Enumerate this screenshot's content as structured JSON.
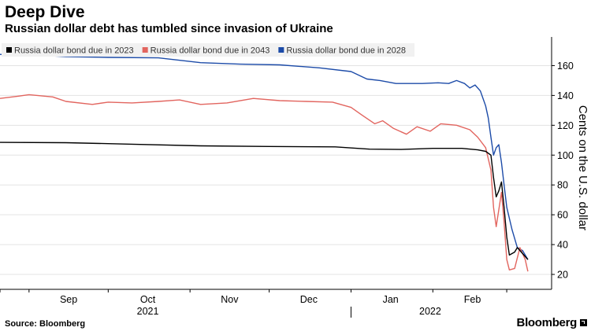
{
  "header": {
    "title": "Deep Dive",
    "subtitle": "Russian dollar debt has tumbled since invasion of Ukraine"
  },
  "footer": {
    "source": "Source: Bloomberg",
    "brand": "Bloomberg"
  },
  "chart_data": {
    "type": "line",
    "title": "Deep Dive",
    "subtitle": "Russian dollar debt has tumbled since invasion of Ukraine",
    "ylabel": "Cents on the U.S. dollar",
    "ylim": [
      10,
      175
    ],
    "yticks": [
      20,
      40,
      60,
      80,
      100,
      120,
      140,
      160
    ],
    "x_range": [
      "2021-08-21",
      "2022-03-18"
    ],
    "x_month_ticks": [
      {
        "label": "Sep",
        "date": "2021-09-01"
      },
      {
        "label": "Oct",
        "date": "2021-10-01"
      },
      {
        "label": "Nov",
        "date": "2021-11-01"
      },
      {
        "label": "Dec",
        "date": "2021-12-01"
      },
      {
        "label": "Jan",
        "date": "2022-01-01"
      },
      {
        "label": "Feb",
        "date": "2022-02-01"
      }
    ],
    "x_year_labels": [
      {
        "label": "2021",
        "date": "2021-10-16"
      },
      {
        "label": "2022",
        "date": "2022-01-31"
      }
    ],
    "x_tick_dates": [
      "2021-08-21",
      "2021-09-01",
      "2021-10-01",
      "2021-11-01",
      "2021-12-01",
      "2022-01-01",
      "2022-02-01",
      "2022-03-01"
    ],
    "grid": true,
    "legend_position": "top-left",
    "series": [
      {
        "name": "Russia dollar bond due in 2023",
        "color": "#000000",
        "points": [
          [
            "2021-08-21",
            108.5
          ],
          [
            "2021-09-15",
            108.3
          ],
          [
            "2021-10-10",
            107.3
          ],
          [
            "2021-11-05",
            106.2
          ],
          [
            "2021-12-01",
            105.8
          ],
          [
            "2021-12-26",
            105.5
          ],
          [
            "2022-01-08",
            104.0
          ],
          [
            "2022-01-20",
            103.8
          ],
          [
            "2022-02-01",
            104.5
          ],
          [
            "2022-02-12",
            104.5
          ],
          [
            "2022-02-18",
            103.5
          ],
          [
            "2022-02-21",
            102.5
          ],
          [
            "2022-02-23",
            100.0
          ],
          [
            "2022-02-24",
            85.0
          ],
          [
            "2022-02-25",
            72.0
          ],
          [
            "2022-02-26",
            76.0
          ],
          [
            "2022-02-27",
            82.0
          ],
          [
            "2022-02-28",
            65.0
          ],
          [
            "2022-03-01",
            45.0
          ],
          [
            "2022-03-02",
            33.0
          ],
          [
            "2022-03-04",
            35.0
          ],
          [
            "2022-03-05",
            38.0
          ],
          [
            "2022-03-07",
            34.0
          ],
          [
            "2022-03-09",
            30.0
          ]
        ]
      },
      {
        "name": "Russia dollar bond due in 2043",
        "color": "#e2655f",
        "points": [
          [
            "2021-08-21",
            138.0
          ],
          [
            "2021-08-28",
            139.5
          ],
          [
            "2021-09-01",
            140.5
          ],
          [
            "2021-09-10",
            139.0
          ],
          [
            "2021-09-15",
            136.0
          ],
          [
            "2021-09-25",
            134.0
          ],
          [
            "2021-10-01",
            135.5
          ],
          [
            "2021-10-10",
            135.0
          ],
          [
            "2021-10-20",
            136.0
          ],
          [
            "2021-10-28",
            137.0
          ],
          [
            "2021-11-05",
            134.0
          ],
          [
            "2021-11-15",
            135.0
          ],
          [
            "2021-11-25",
            138.0
          ],
          [
            "2021-12-05",
            136.5
          ],
          [
            "2021-12-15",
            136.0
          ],
          [
            "2021-12-25",
            135.5
          ],
          [
            "2022-01-01",
            132.0
          ],
          [
            "2022-01-05",
            127.0
          ],
          [
            "2022-01-10",
            121.0
          ],
          [
            "2022-01-13",
            123.0
          ],
          [
            "2022-01-17",
            118.0
          ],
          [
            "2022-01-22",
            114.0
          ],
          [
            "2022-01-26",
            119.0
          ],
          [
            "2022-01-31",
            116.0
          ],
          [
            "2022-02-04",
            121.0
          ],
          [
            "2022-02-10",
            120.0
          ],
          [
            "2022-02-15",
            117.0
          ],
          [
            "2022-02-18",
            112.0
          ],
          [
            "2022-02-21",
            105.0
          ],
          [
            "2022-02-23",
            90.0
          ],
          [
            "2022-02-24",
            65.0
          ],
          [
            "2022-02-25",
            52.0
          ],
          [
            "2022-02-27",
            75.0
          ],
          [
            "2022-02-28",
            55.0
          ],
          [
            "2022-03-01",
            30.0
          ],
          [
            "2022-03-02",
            23.0
          ],
          [
            "2022-03-04",
            24.0
          ],
          [
            "2022-03-06",
            38.0
          ],
          [
            "2022-03-08",
            30.0
          ],
          [
            "2022-03-09",
            22.0
          ]
        ]
      },
      {
        "name": "Russia dollar bond due in 2028",
        "color": "#1c4ba8",
        "points": [
          [
            "2021-08-21",
            167.5
          ],
          [
            "2021-09-01",
            167.3
          ],
          [
            "2021-09-15",
            166.0
          ],
          [
            "2021-10-01",
            165.5
          ],
          [
            "2021-10-20",
            165.2
          ],
          [
            "2021-11-05",
            162.0
          ],
          [
            "2021-11-20",
            161.0
          ],
          [
            "2021-12-05",
            160.5
          ],
          [
            "2021-12-20",
            158.5
          ],
          [
            "2022-01-01",
            156.0
          ],
          [
            "2022-01-07",
            151.0
          ],
          [
            "2022-01-12",
            150.0
          ],
          [
            "2022-01-18",
            148.0
          ],
          [
            "2022-01-28",
            148.0
          ],
          [
            "2022-02-03",
            148.5
          ],
          [
            "2022-02-07",
            148.0
          ],
          [
            "2022-02-10",
            150.0
          ],
          [
            "2022-02-13",
            148.0
          ],
          [
            "2022-02-15",
            145.0
          ],
          [
            "2022-02-17",
            147.0
          ],
          [
            "2022-02-19",
            143.0
          ],
          [
            "2022-02-21",
            133.0
          ],
          [
            "2022-02-22",
            125.0
          ],
          [
            "2022-02-23",
            112.0
          ],
          [
            "2022-02-24",
            100.0
          ],
          [
            "2022-02-25",
            105.0
          ],
          [
            "2022-02-26",
            107.0
          ],
          [
            "2022-02-27",
            95.0
          ],
          [
            "2022-02-28",
            80.0
          ],
          [
            "2022-03-01",
            65.0
          ],
          [
            "2022-03-03",
            50.0
          ],
          [
            "2022-03-05",
            38.0
          ],
          [
            "2022-03-07",
            36.0
          ],
          [
            "2022-03-09",
            30.0
          ]
        ]
      }
    ]
  }
}
